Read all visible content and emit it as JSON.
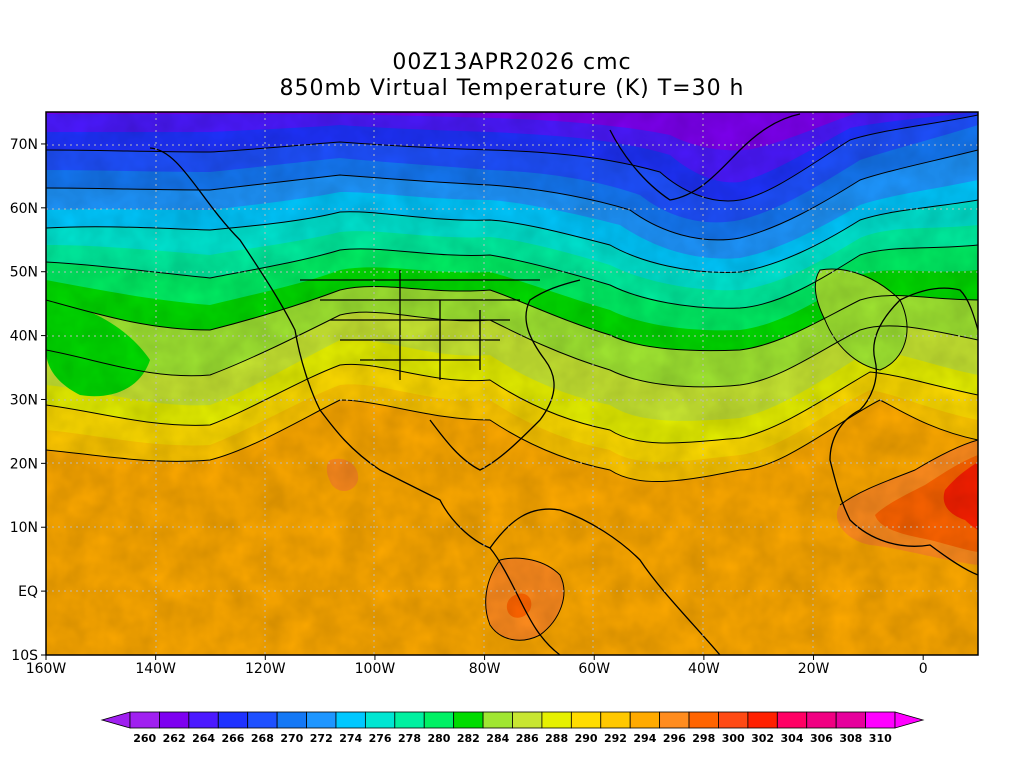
{
  "title": "00Z13APR2026 cmc",
  "subtitle": "850mb Virtual Temperature (K) T=30 h",
  "map": {
    "lon_range": [
      -160,
      10
    ],
    "lat_range": [
      -10,
      75
    ],
    "x_ticks": [
      "160W",
      "140W",
      "120W",
      "100W",
      "80W",
      "60W",
      "40W",
      "20W",
      "0"
    ],
    "y_ticks": [
      "10S",
      "EQ",
      "10N",
      "20N",
      "30N",
      "40N",
      "50N",
      "60N",
      "70N"
    ],
    "grid": "dotted",
    "field": "850mb virtual temperature",
    "units": "K"
  },
  "colorbar": {
    "labels": [
      "260",
      "262",
      "264",
      "266",
      "268",
      "270",
      "272",
      "274",
      "276",
      "278",
      "280",
      "282",
      "284",
      "286",
      "288",
      "290",
      "292",
      "294",
      "296",
      "298",
      "300",
      "302",
      "304",
      "306",
      "308",
      "310"
    ],
    "colors": [
      "#a020f0",
      "#7d00f0",
      "#4b19ff",
      "#1e32ff",
      "#1e50ff",
      "#1478f5",
      "#1e96ff",
      "#00c8ff",
      "#00e6d2",
      "#00f0a0",
      "#00f064",
      "#00dc00",
      "#a0e632",
      "#c8e632",
      "#e6f000",
      "#ffdc00",
      "#ffc800",
      "#ffaa00",
      "#ff8c1e",
      "#ff6400",
      "#ff4a14",
      "#ff2000",
      "#ff0064",
      "#f00082",
      "#e6009c",
      "#ff00ff"
    ]
  }
}
